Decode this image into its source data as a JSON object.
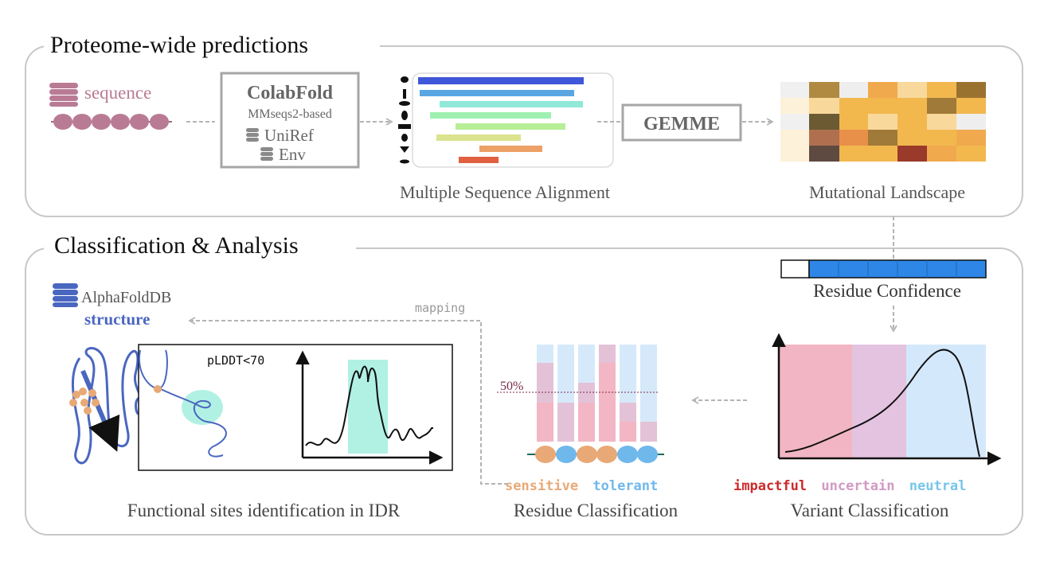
{
  "panels": {
    "top_title": "Proteome-wide predictions",
    "bottom_title": "Classification & Analysis"
  },
  "top": {
    "sequence_label": "sequence",
    "colabfold": {
      "title": "ColabFold",
      "subtitle": "MMseqs2-based",
      "db1": "UniRef",
      "db2": "Env"
    },
    "gemme": "GEMME",
    "msa_caption": "Multiple Sequence Alignment",
    "landscape_caption": "Mutational Landscape"
  },
  "bottom": {
    "residue_confidence": "Residue Confidence",
    "alphafold": {
      "db": "AlphaFoldDB",
      "structure": "structure"
    },
    "mapping": "mapping",
    "plddt": "pLDDT<70",
    "fifty": "50%",
    "sensitive": "sensitive",
    "tolerant": "tolerant",
    "residue_caption": "Residue Classification",
    "impactful": "impactful",
    "uncertain": "uncertain",
    "neutral": "neutral",
    "variant_caption": "Variant Classification",
    "functional_caption": "Functional sites identification in IDR"
  },
  "colors": {
    "sequence": "#b97b94",
    "sensitive": "#e8a977",
    "tolerant": "#6fb8ec",
    "impactful": "#cc2a2a",
    "uncertain": "#d19ac3",
    "neutral": "#78c6ea",
    "alphafold_blue": "#4a67c0",
    "confidence_blue": "#2e86e6"
  },
  "icons": [
    "database-icon",
    "arrow-right-icon",
    "arrow-down-icon",
    "arrow-left-icon",
    "organism-icon"
  ]
}
